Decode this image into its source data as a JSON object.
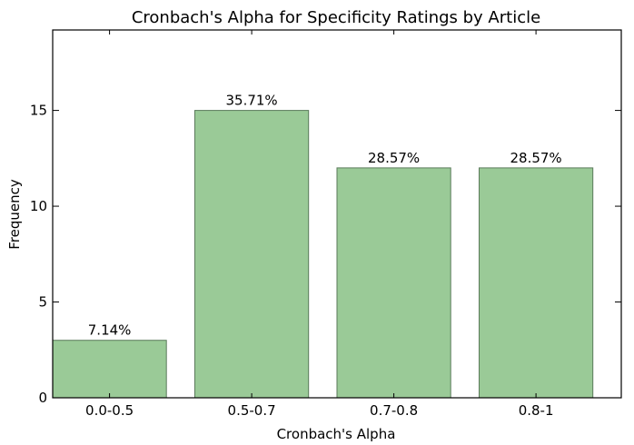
{
  "chart_data": {
    "type": "bar",
    "title": "Cronbach's Alpha for Specificity Ratings by Article",
    "xlabel": "Cronbach's Alpha",
    "ylabel": "Frequency",
    "categories": [
      "0.0-0.5",
      "0.5-0.7",
      "0.7-0.8",
      "0.8-1"
    ],
    "values": [
      3,
      15,
      12,
      12
    ],
    "data_labels": [
      "7.14%",
      "35.71%",
      "28.57%",
      "28.57%"
    ],
    "ylim": [
      0,
      19.2
    ],
    "yticks": [
      0,
      5,
      10,
      15
    ],
    "grid": false,
    "legend": "none",
    "bar_color": "#9aca97"
  }
}
